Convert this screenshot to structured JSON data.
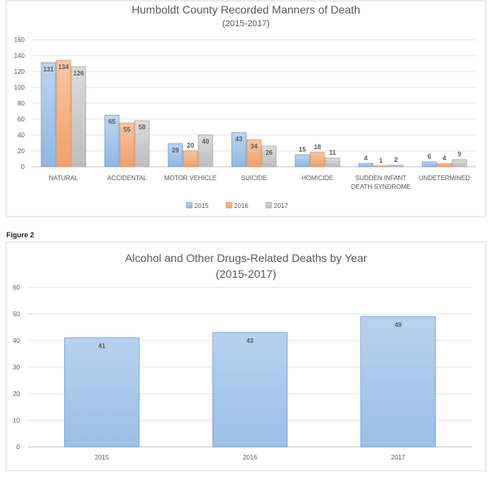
{
  "figure_label": "Figure 2",
  "chart_data": [
    {
      "type": "bar",
      "title": "Humboldt County Recorded Manners of Death",
      "subtitle": "(2015-2017)",
      "categories": [
        "NATURAL",
        "ACCIDENTAL",
        "MOTOR VEHICLE",
        "SUICIDE",
        "HOMICIDE",
        "SUDDEN INFANT DEATH SYNDROME",
        "UNDETERMINED"
      ],
      "series": [
        {
          "name": "2015",
          "values": [
            131,
            65,
            29,
            43,
            15,
            4,
            6
          ]
        },
        {
          "name": "2016",
          "values": [
            134,
            55,
            20,
            34,
            18,
            1,
            4
          ]
        },
        {
          "name": "2017",
          "values": [
            126,
            58,
            40,
            26,
            11,
            2,
            9
          ]
        }
      ],
      "ylim": [
        0,
        160
      ],
      "yticks": [
        0,
        20,
        40,
        60,
        80,
        100,
        120,
        140,
        160
      ],
      "grid": true,
      "legend": "bottom",
      "colors": {
        "2015": "#9dc3e6",
        "2016": "#f4b183",
        "2017": "#c9c9c9"
      },
      "xlabel": "",
      "ylabel": ""
    },
    {
      "type": "bar",
      "title": "Alcohol and Other Drugs-Related Deaths by Year",
      "subtitle": "(2015-2017)",
      "categories": [
        "2015",
        "2016",
        "2017"
      ],
      "values": [
        41,
        43,
        49
      ],
      "ylim": [
        0,
        60
      ],
      "yticks": [
        0,
        10,
        20,
        30,
        40,
        50,
        60
      ],
      "grid": true,
      "legend": "none",
      "colors": {
        "bar": "#a9c8ea"
      },
      "xlabel": "",
      "ylabel": ""
    }
  ]
}
